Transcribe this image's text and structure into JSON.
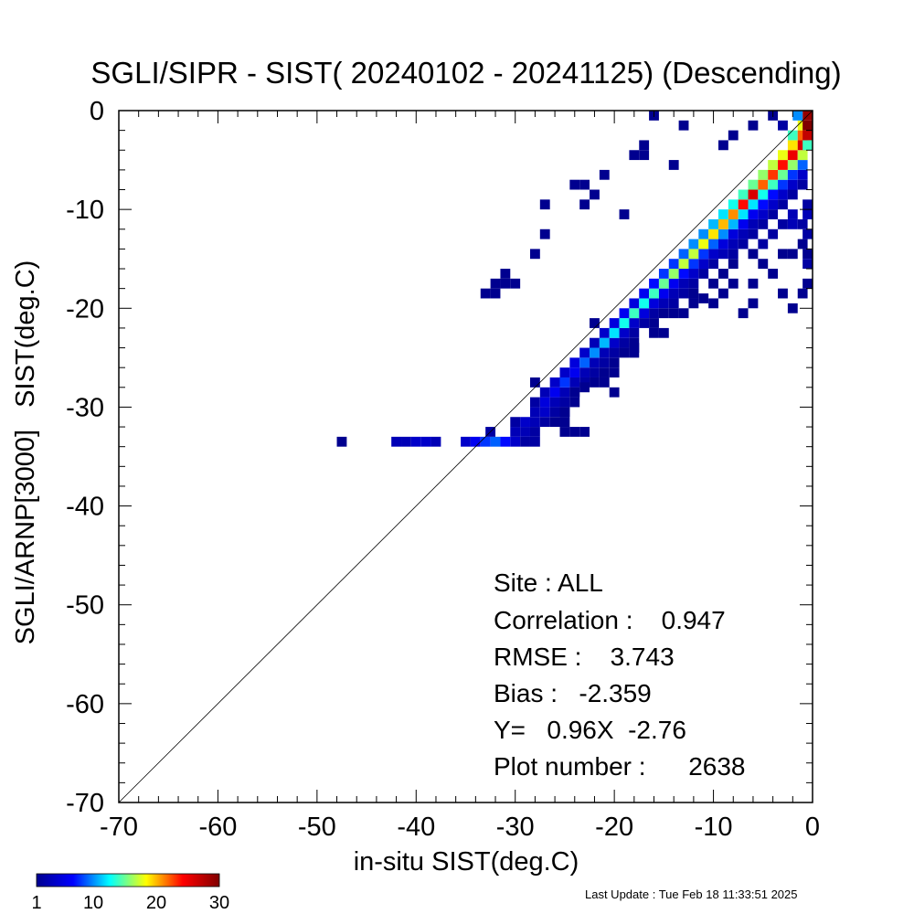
{
  "chart_data": {
    "type": "heatmap",
    "title": "SGLI/SIPR - SIST( 20240102 - 20241125) (Descending)",
    "xlabel": "in-situ SIST(deg.C)",
    "ylabel": "SGLI/ARNP[3000]   SIST(deg.C)",
    "xlim": [
      -70,
      0
    ],
    "ylim": [
      -70,
      0
    ],
    "x_ticks": [
      -70,
      -60,
      -50,
      -40,
      -30,
      -20,
      -10,
      0
    ],
    "y_ticks": [
      0,
      -10,
      -20,
      -30,
      -40,
      -50,
      -60,
      -70
    ],
    "x_tick_labels": [
      "-70",
      "-60",
      "-50",
      "-40",
      "-30",
      "-20",
      "-10",
      "0"
    ],
    "y_tick_labels": [
      "0",
      "-10",
      "-20",
      "-30",
      "-40",
      "-50",
      "-60",
      "-70"
    ],
    "reference_line": "y = x",
    "colorbar": {
      "min": 1,
      "max": 30,
      "ticks": [
        1,
        10,
        20,
        30
      ],
      "tick_labels": [
        "1",
        "10",
        "20",
        "30"
      ],
      "colormap": "jet",
      "colors": [
        "#00008f",
        "#0000ff",
        "#00ffff",
        "#ffff00",
        "#ff0000",
        "#800000"
      ]
    },
    "stats": {
      "site": "Site : ALL",
      "correlation": "Correlation :    0.947",
      "rmse": "RMSE :    3.743",
      "bias": "Bias :   -2.359",
      "regression": "Y=   0.96X  -2.76",
      "plot_number": "Plot number :      2638"
    },
    "cells": [
      [
        -47.5,
        -33.5,
        1
      ],
      [
        -42,
        -33.5,
        3
      ],
      [
        -41,
        -33.5,
        3
      ],
      [
        -40,
        -33.5,
        4
      ],
      [
        -39,
        -33.5,
        4
      ],
      [
        -38,
        -33.5,
        3
      ],
      [
        -35,
        -33.5,
        4
      ],
      [
        -34,
        -33.5,
        6
      ],
      [
        -33,
        -33.5,
        8
      ],
      [
        -32,
        -33.5,
        9
      ],
      [
        -31,
        -33.5,
        7
      ],
      [
        -30,
        -33.5,
        4
      ],
      [
        -29,
        -33.5,
        2
      ],
      [
        -28,
        -33.5,
        2
      ],
      [
        -32.5,
        -32.5,
        2
      ],
      [
        -30,
        -32.5,
        3
      ],
      [
        -29,
        -32.5,
        3
      ],
      [
        -28,
        -32.5,
        2
      ],
      [
        -30,
        -31.5,
        2
      ],
      [
        -29,
        -31.5,
        4
      ],
      [
        -28,
        -31.5,
        3
      ],
      [
        -27,
        -31.5,
        2
      ],
      [
        -26,
        -31.5,
        1
      ],
      [
        -25,
        -31.5,
        1
      ],
      [
        -24,
        -32.5,
        1
      ],
      [
        -23,
        -32.5,
        1
      ],
      [
        -28,
        -30.5,
        3
      ],
      [
        -27,
        -30.5,
        4
      ],
      [
        -26,
        -30.5,
        2
      ],
      [
        -25,
        -30.5,
        1
      ],
      [
        -28,
        -29.5,
        2
      ],
      [
        -27,
        -29.5,
        5
      ],
      [
        -26,
        -29.5,
        3
      ],
      [
        -25,
        -29.5,
        2
      ],
      [
        -24,
        -29.5,
        1
      ],
      [
        -27,
        -28.5,
        3
      ],
      [
        -26,
        -28.5,
        6
      ],
      [
        -25,
        -28.5,
        3
      ],
      [
        -24,
        -28.5,
        2
      ],
      [
        -26,
        -27.5,
        4
      ],
      [
        -25,
        -27.5,
        8
      ],
      [
        -24,
        -27.5,
        3
      ],
      [
        -23,
        -27.5,
        2
      ],
      [
        -22,
        -27.5,
        1
      ],
      [
        -28,
        -27.5,
        1
      ],
      [
        -25,
        -26.5,
        4
      ],
      [
        -24,
        -26.5,
        6
      ],
      [
        -23,
        -26.5,
        3
      ],
      [
        -22,
        -26.5,
        2
      ],
      [
        -21,
        -26.5,
        1
      ],
      [
        -24,
        -25.5,
        5
      ],
      [
        -23,
        -25.5,
        9
      ],
      [
        -22,
        -25.5,
        3
      ],
      [
        -21,
        -25.5,
        2
      ],
      [
        -20,
        -25.5,
        1
      ],
      [
        -23,
        -24.5,
        4
      ],
      [
        -22,
        -24.5,
        10
      ],
      [
        -21,
        -24.5,
        3
      ],
      [
        -20,
        -24.5,
        2
      ],
      [
        -19,
        -24.5,
        1
      ],
      [
        -18,
        -24.5,
        1
      ],
      [
        -22,
        -23.5,
        3
      ],
      [
        -21,
        -23.5,
        11
      ],
      [
        -20,
        -23.5,
        4
      ],
      [
        -19,
        -23.5,
        2
      ],
      [
        -18,
        -23.5,
        1
      ],
      [
        -21,
        -22.5,
        4
      ],
      [
        -20,
        -22.5,
        12
      ],
      [
        -19,
        -22.5,
        4
      ],
      [
        -18,
        -22.5,
        2
      ],
      [
        -16,
        -22.5,
        1
      ],
      [
        -15,
        -22.5,
        1
      ],
      [
        -20,
        -21.5,
        5
      ],
      [
        -19,
        -21.5,
        13
      ],
      [
        -18,
        -21.5,
        4
      ],
      [
        -17,
        -21.5,
        2
      ],
      [
        -16,
        -21.5,
        1
      ],
      [
        -22,
        -21.5,
        1
      ],
      [
        -19,
        -20.5,
        6
      ],
      [
        -18,
        -20.5,
        14
      ],
      [
        -17,
        -20.5,
        5
      ],
      [
        -16,
        -20.5,
        2
      ],
      [
        -15,
        -20.5,
        1
      ],
      [
        -13,
        -20.5,
        1
      ],
      [
        -18,
        -19.5,
        5
      ],
      [
        -17,
        -19.5,
        13
      ],
      [
        -16,
        -19.5,
        5
      ],
      [
        -15,
        -19.5,
        3
      ],
      [
        -14,
        -19.5,
        2
      ],
      [
        -17,
        -18.5,
        6
      ],
      [
        -16,
        -18.5,
        14
      ],
      [
        -15,
        -18.5,
        6
      ],
      [
        -14,
        -18.5,
        3
      ],
      [
        -13,
        -18.5,
        2
      ],
      [
        -12,
        -18.5,
        1
      ],
      [
        -16,
        -17.5,
        7
      ],
      [
        -15,
        -17.5,
        15
      ],
      [
        -14,
        -17.5,
        6
      ],
      [
        -13,
        -17.5,
        3
      ],
      [
        -12,
        -17.5,
        2
      ],
      [
        -10,
        -17.5,
        1
      ],
      [
        -15,
        -16.5,
        8
      ],
      [
        -14,
        -16.5,
        16
      ],
      [
        -13,
        -16.5,
        7
      ],
      [
        -12,
        -16.5,
        4
      ],
      [
        -11,
        -16.5,
        2
      ],
      [
        -9,
        -16.5,
        1
      ],
      [
        -14,
        -15.5,
        8
      ],
      [
        -13,
        -15.5,
        17
      ],
      [
        -12,
        -15.5,
        8
      ],
      [
        -11,
        -15.5,
        4
      ],
      [
        -10,
        -15.5,
        2
      ],
      [
        -8,
        -15.5,
        1
      ],
      [
        -13,
        -14.5,
        9
      ],
      [
        -12,
        -14.5,
        17
      ],
      [
        -11,
        -14.5,
        8
      ],
      [
        -10,
        -14.5,
        4
      ],
      [
        -9,
        -14.5,
        3
      ],
      [
        -8,
        -14.5,
        2
      ],
      [
        -12,
        -13.5,
        10
      ],
      [
        -11,
        -13.5,
        18
      ],
      [
        -10,
        -13.5,
        9
      ],
      [
        -9,
        -13.5,
        5
      ],
      [
        -8,
        -13.5,
        3
      ],
      [
        -7,
        -13.5,
        2
      ],
      [
        -11,
        -12.5,
        10
      ],
      [
        -10,
        -12.5,
        19
      ],
      [
        -9,
        -12.5,
        10
      ],
      [
        -8,
        -12.5,
        5
      ],
      [
        -7,
        -12.5,
        3
      ],
      [
        -6,
        -12.5,
        2
      ],
      [
        -10,
        -11.5,
        11
      ],
      [
        -9,
        -11.5,
        20
      ],
      [
        -8,
        -11.5,
        11
      ],
      [
        -7,
        -11.5,
        6
      ],
      [
        -6,
        -11.5,
        3
      ],
      [
        -5,
        -11.5,
        2
      ],
      [
        -9,
        -10.5,
        12
      ],
      [
        -8,
        -10.5,
        21
      ],
      [
        -7,
        -10.5,
        12
      ],
      [
        -6,
        -10.5,
        6
      ],
      [
        -5,
        -10.5,
        4
      ],
      [
        -4,
        -10.5,
        2
      ],
      [
        -8,
        -9.5,
        13
      ],
      [
        -7,
        -9.5,
        24
      ],
      [
        -6,
        -9.5,
        12
      ],
      [
        -5,
        -9.5,
        7
      ],
      [
        -4,
        -9.5,
        4
      ],
      [
        -3,
        -9.5,
        2
      ],
      [
        -7,
        -8.5,
        14
      ],
      [
        -6,
        -8.5,
        26
      ],
      [
        -5,
        -8.5,
        13
      ],
      [
        -4,
        -8.5,
        7
      ],
      [
        -3,
        -8.5,
        4
      ],
      [
        -2,
        -8.5,
        2
      ],
      [
        -6,
        -7.5,
        15
      ],
      [
        -5,
        -7.5,
        22
      ],
      [
        -4,
        -7.5,
        14
      ],
      [
        -3,
        -7.5,
        8
      ],
      [
        -2,
        -7.5,
        4
      ],
      [
        -1,
        -7.5,
        2
      ],
      [
        -5,
        -6.5,
        16
      ],
      [
        -4,
        -6.5,
        23
      ],
      [
        -3,
        -6.5,
        15
      ],
      [
        -2,
        -6.5,
        8
      ],
      [
        -1,
        -6.5,
        4
      ],
      [
        -4,
        -5.5,
        17
      ],
      [
        -3,
        -5.5,
        24
      ],
      [
        -2,
        -5.5,
        16
      ],
      [
        -1,
        -5.5,
        9
      ],
      [
        -3,
        -4.5,
        18
      ],
      [
        -2,
        -4.5,
        25
      ],
      [
        -1,
        -4.5,
        17
      ],
      [
        -2,
        -3.5,
        19
      ],
      [
        -1,
        -3.5,
        26
      ],
      [
        -0.5,
        -3.5,
        14
      ],
      [
        -2,
        -2.5,
        14
      ],
      [
        -1,
        -2.5,
        22
      ],
      [
        -0.5,
        -2.5,
        27
      ],
      [
        -1,
        -1.5,
        18
      ],
      [
        -0.5,
        -1.5,
        30
      ],
      [
        -0.5,
        -0.5,
        29
      ],
      [
        -1.5,
        -0.5,
        10
      ],
      [
        -3,
        -1.5,
        2
      ],
      [
        -4,
        -0.5,
        1
      ],
      [
        -6,
        -1.5,
        1
      ],
      [
        -8,
        -2.5,
        1
      ],
      [
        -16,
        -0.5,
        1
      ],
      [
        -13,
        -1.5,
        1
      ],
      [
        -9,
        -3.5,
        1
      ],
      [
        -17,
        -3.5,
        1
      ],
      [
        -18,
        -4.5,
        1
      ],
      [
        -17,
        -4.5,
        1
      ],
      [
        -14,
        -5.5,
        1
      ],
      [
        -21,
        -6.5,
        1
      ],
      [
        -23,
        -7.5,
        1
      ],
      [
        -24,
        -7.5,
        1
      ],
      [
        -22,
        -8.5,
        1
      ],
      [
        -27,
        -9.5,
        1
      ],
      [
        -23,
        -9.5,
        1
      ],
      [
        -19,
        -10.5,
        1
      ],
      [
        -27,
        -12.5,
        1
      ],
      [
        -28,
        -14.5,
        1
      ],
      [
        -31,
        -16.5,
        1
      ],
      [
        -32,
        -17.5,
        1
      ],
      [
        -31,
        -17.5,
        1
      ],
      [
        -30,
        -17.5,
        1
      ],
      [
        -33,
        -18.5,
        1
      ],
      [
        -32,
        -18.5,
        1
      ],
      [
        -2,
        -11.5,
        3
      ],
      [
        -1,
        -11.5,
        2
      ],
      [
        -0.5,
        -10.5,
        3
      ],
      [
        -0.5,
        -9.5,
        2
      ],
      [
        -2,
        -10.5,
        3
      ],
      [
        -3,
        -11.5,
        2
      ],
      [
        -0.5,
        -12.5,
        2
      ],
      [
        -1,
        -13.5,
        1
      ],
      [
        -0.5,
        -14.5,
        1
      ],
      [
        -2,
        -14.5,
        1
      ],
      [
        -0.5,
        -15.5,
        2
      ],
      [
        -4,
        -12.5,
        2
      ],
      [
        -5,
        -13.5,
        2
      ],
      [
        -3,
        -14.5,
        1
      ],
      [
        -6,
        -14.5,
        1
      ],
      [
        -5,
        -15.5,
        1
      ],
      [
        -4,
        -16.5,
        1
      ],
      [
        -0.5,
        -17.5,
        1
      ],
      [
        -1,
        -18.5,
        1
      ],
      [
        -2,
        -20,
        1
      ],
      [
        -3,
        -18.5,
        1
      ],
      [
        -6,
        -17.5,
        1
      ],
      [
        -8,
        -17.5,
        1
      ],
      [
        -9,
        -18.5,
        1
      ],
      [
        -10,
        -19.5,
        1
      ],
      [
        -11,
        -19,
        1
      ],
      [
        -6,
        -19.5,
        1
      ],
      [
        -7,
        -20.5,
        1
      ],
      [
        -12,
        -19.5,
        1
      ],
      [
        -14,
        -20.5,
        1
      ],
      [
        -18,
        -24,
        1
      ],
      [
        -20,
        -26.5,
        1
      ],
      [
        -21,
        -27.5,
        1
      ],
      [
        -20,
        -28.5,
        1
      ],
      [
        -23,
        -28,
        1
      ],
      [
        -24,
        -28.5,
        1
      ],
      [
        -25,
        -32.5,
        1
      ],
      [
        -25,
        -30.5,
        1
      ]
    ]
  },
  "footer": {
    "last_update": "Last Update : Tue Feb 18 11:33:51 2025"
  }
}
